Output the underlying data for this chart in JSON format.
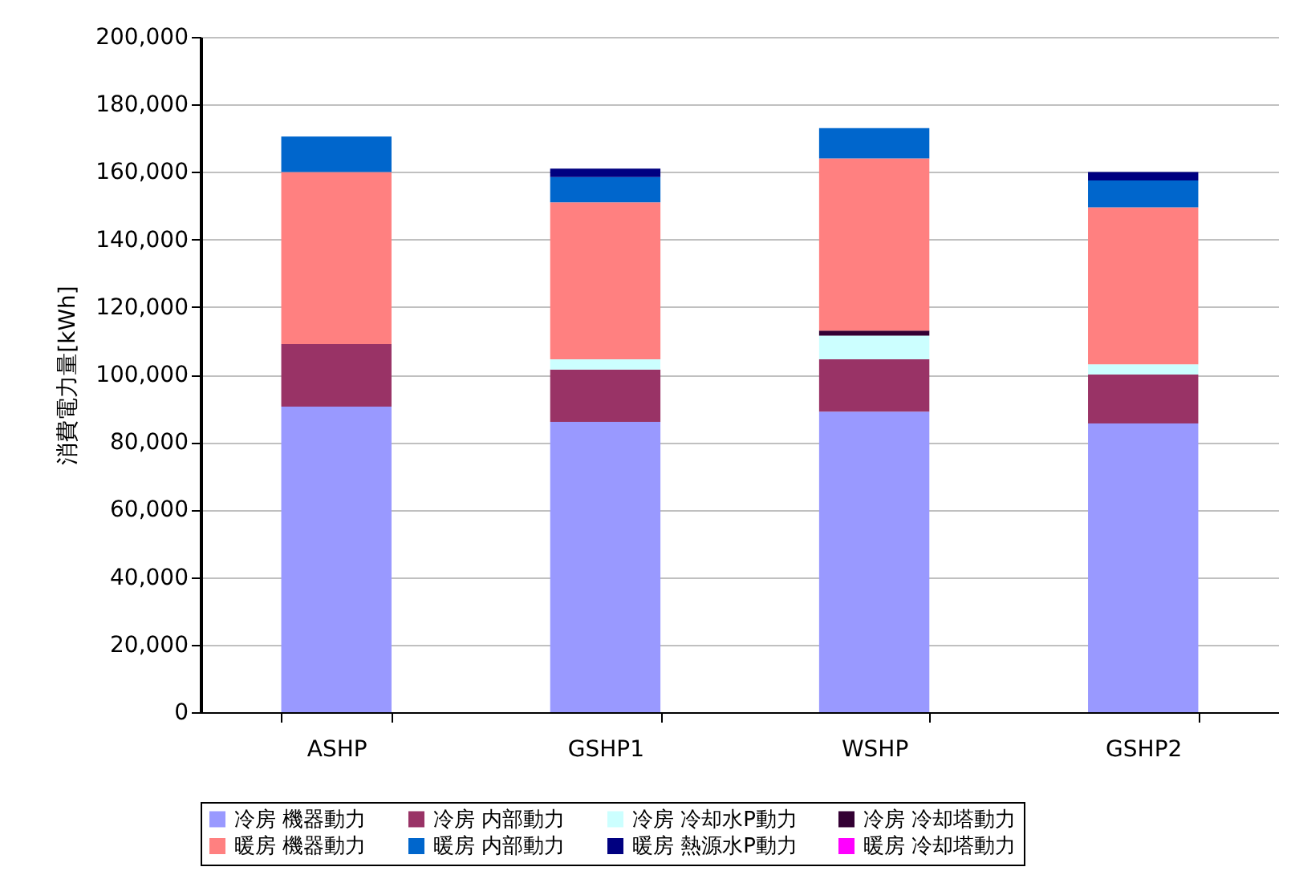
{
  "chart_data": {
    "type": "bar",
    "stacked": true,
    "ylabel": "消費電力量[kWh]",
    "categories": [
      "ASHP",
      "GSHP1",
      "WSHP",
      "GSHP2"
    ],
    "ylim": [
      0,
      200000
    ],
    "yticks": [
      {
        "value": 0,
        "label": "0"
      },
      {
        "value": 20000,
        "label": "20,000"
      },
      {
        "value": 40000,
        "label": "40,000"
      },
      {
        "value": 60000,
        "label": "60,000"
      },
      {
        "value": 80000,
        "label": "80,000"
      },
      {
        "value": 100000,
        "label": "100,000"
      },
      {
        "value": 120000,
        "label": "120,000"
      },
      {
        "value": 140000,
        "label": "140,000"
      },
      {
        "value": 160000,
        "label": "160,000"
      },
      {
        "value": 180000,
        "label": "180,000"
      },
      {
        "value": 200000,
        "label": "200,000"
      }
    ],
    "grid": "y",
    "legend": "bottom",
    "series": [
      {
        "name": "冷房 機器動力",
        "color": "#9999ff",
        "values": [
          90500,
          86000,
          89000,
          85500
        ]
      },
      {
        "name": "冷房 内部動力",
        "color": "#993366",
        "values": [
          18500,
          15500,
          15500,
          14500
        ]
      },
      {
        "name": "冷房 冷却水P動力",
        "color": "#ccffff",
        "values": [
          0,
          3000,
          7000,
          3000
        ]
      },
      {
        "name": "冷房 冷却塔動力",
        "color": "#330033",
        "values": [
          0,
          0,
          1500,
          0
        ]
      },
      {
        "name": "暖房 機器動力",
        "color": "#ff8080",
        "values": [
          51000,
          46500,
          51000,
          46500
        ]
      },
      {
        "name": "暖房 内部動力",
        "color": "#0066cc",
        "values": [
          10500,
          7500,
          9000,
          8000
        ]
      },
      {
        "name": "暖房 熱源水P動力",
        "color": "#000080",
        "values": [
          0,
          2500,
          0,
          2500
        ]
      },
      {
        "name": "暖房 冷却塔動力",
        "color": "#ff00ff",
        "values": [
          0,
          0,
          0,
          0
        ]
      }
    ]
  }
}
